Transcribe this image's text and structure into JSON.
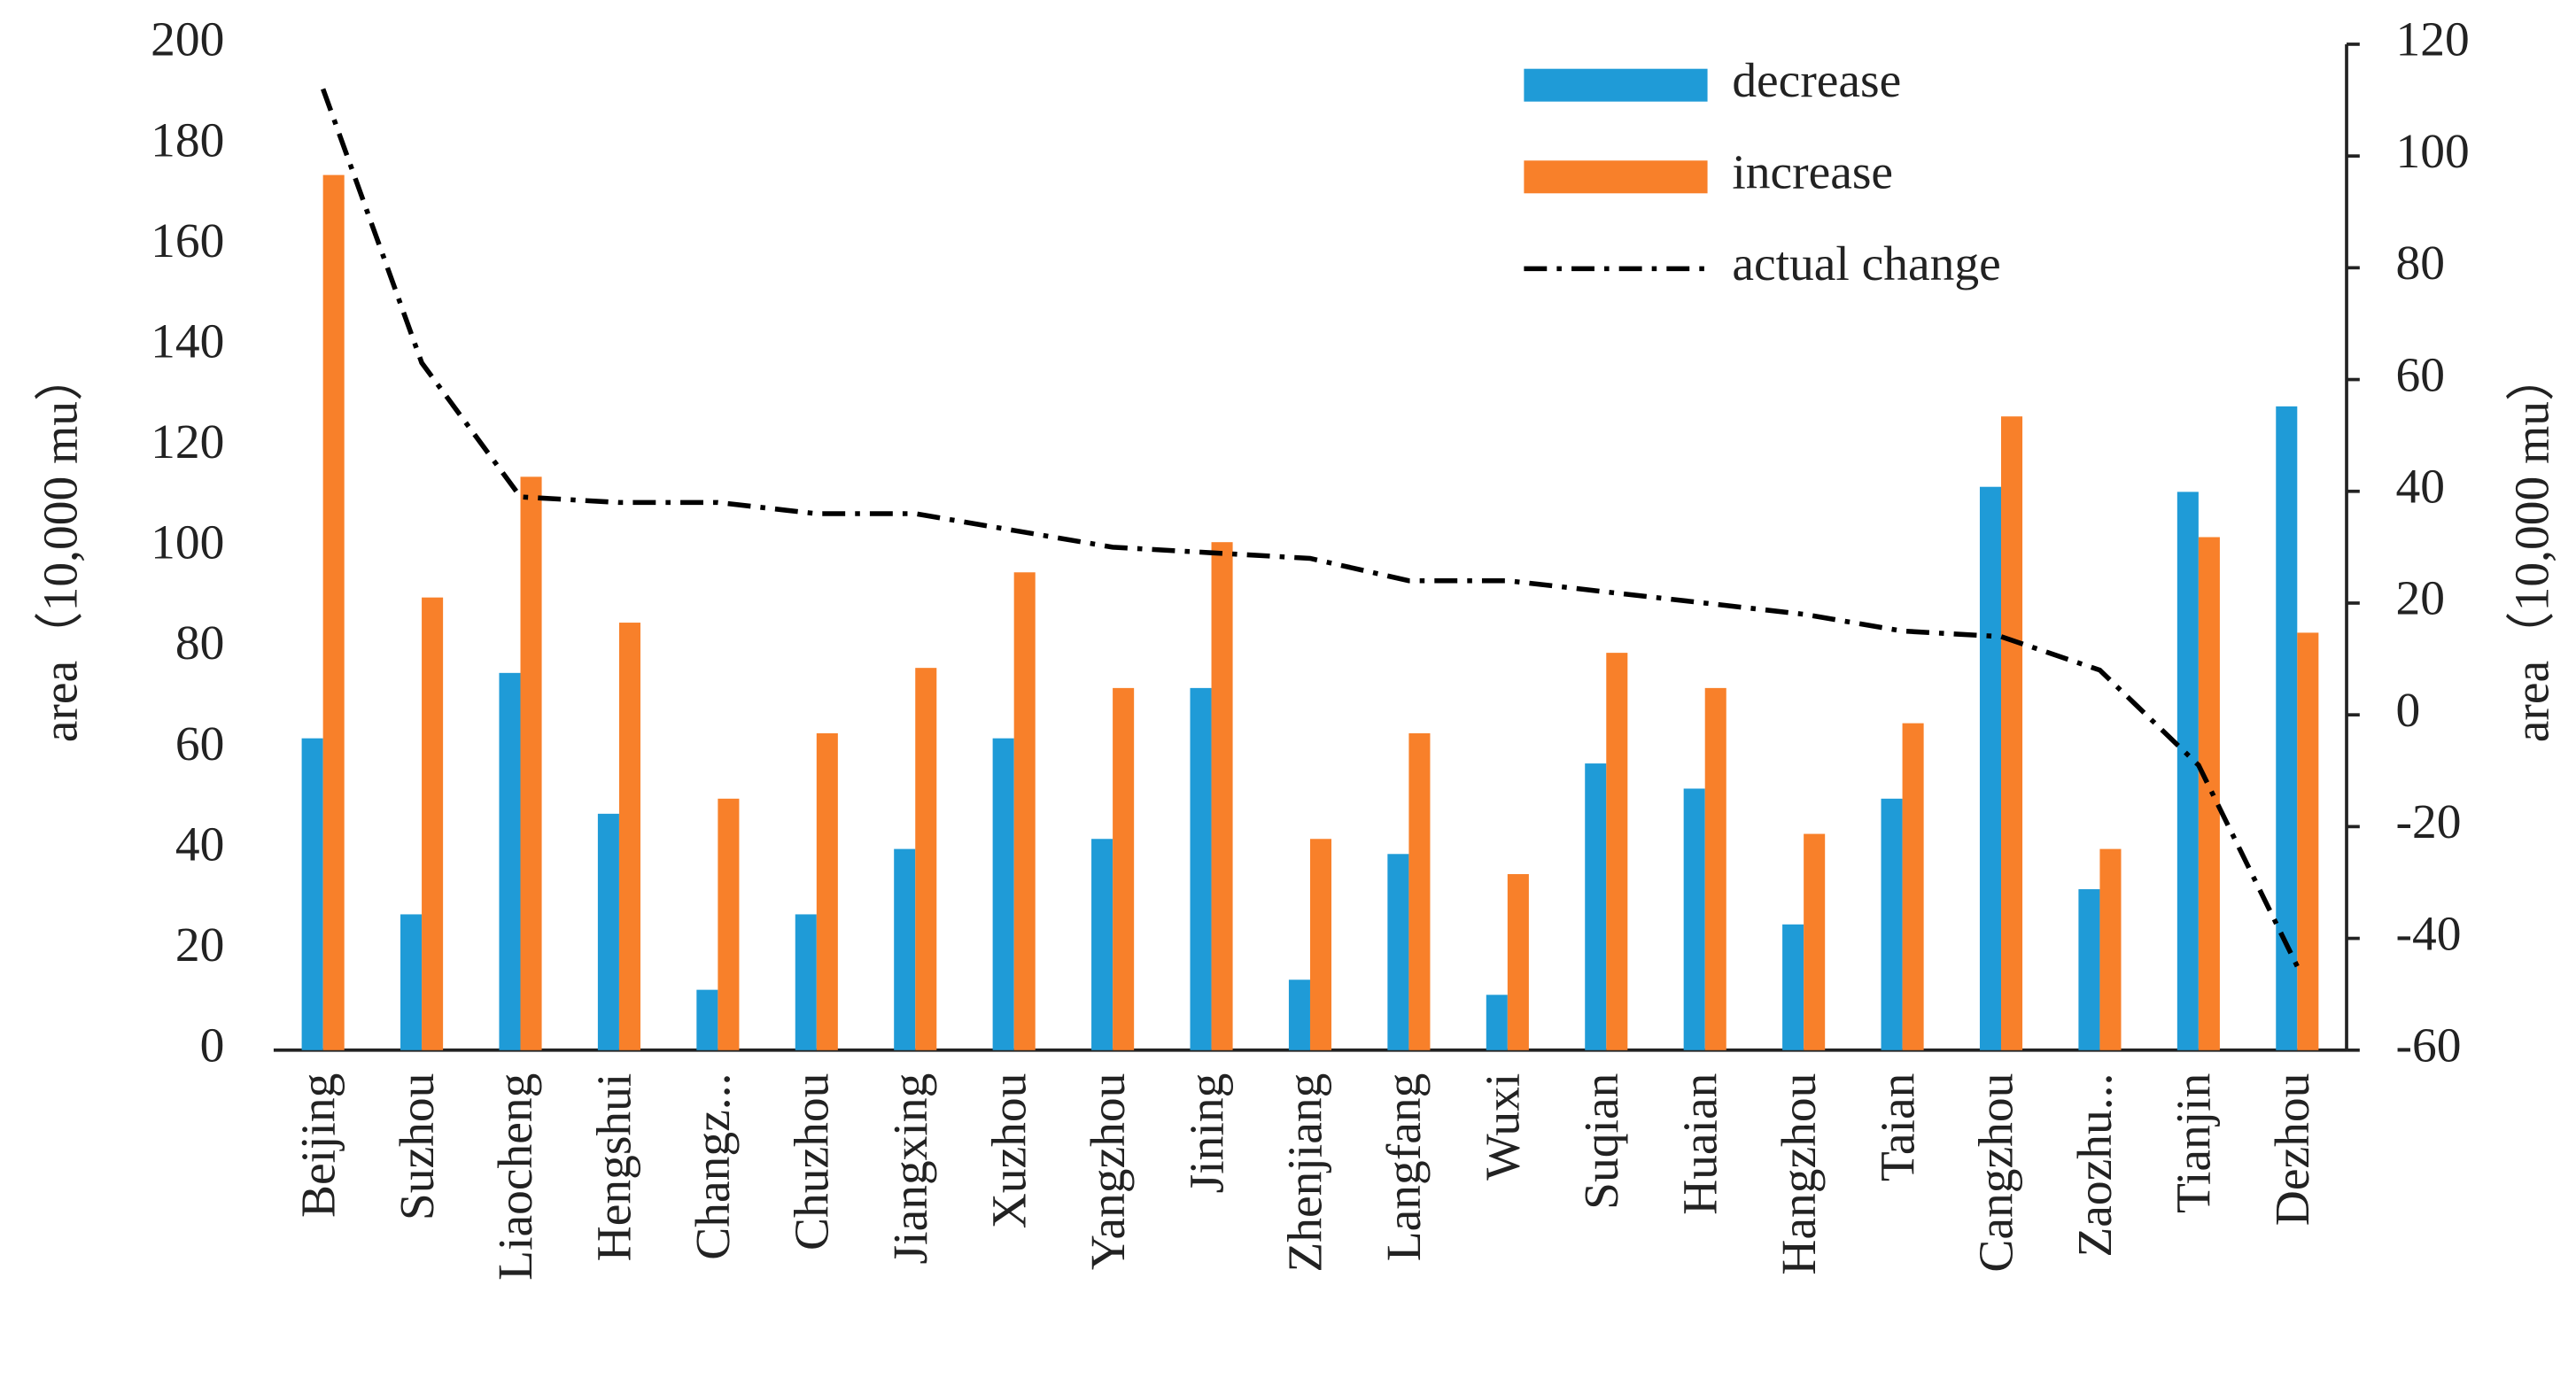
{
  "chart_data": {
    "type": "bar",
    "categories": [
      "Beijing",
      "Suzhou",
      "Liaocheng",
      "Hengshui",
      "Changz...",
      "Chuzhou",
      "Jiangxing",
      "Xuzhou",
      "Yangzhou",
      "Jining",
      "Zhenjiang",
      "Langfang",
      "Wuxi",
      "Suqian",
      "Huaian",
      "Hangzhou",
      "Taian",
      "Cangzhou",
      "Zaozhu...",
      "Tianjin",
      "Dezhou"
    ],
    "series": [
      {
        "name": "decrease",
        "color": "#1f9bd7",
        "values": [
          62,
          27,
          75,
          47,
          12,
          27,
          40,
          62,
          42,
          72,
          14,
          39,
          11,
          57,
          52,
          25,
          50,
          112,
          32,
          111,
          128
        ]
      },
      {
        "name": "increase",
        "color": "#f8802a",
        "values": [
          174,
          90,
          114,
          85,
          50,
          63,
          76,
          95,
          72,
          101,
          42,
          63,
          35,
          79,
          72,
          43,
          65,
          126,
          40,
          102,
          83
        ]
      },
      {
        "name": "actual change",
        "color": "#000000",
        "type": "line",
        "axis": "y2",
        "values": [
          112,
          63,
          39,
          38,
          38,
          36,
          36,
          33,
          30,
          29,
          28,
          24,
          24,
          22,
          20,
          18,
          15,
          14,
          8,
          -9,
          -45
        ]
      }
    ],
    "ylabel": "area（10,000 mu）",
    "y2label": "area（10,000 mu）",
    "ylim": [
      0,
      200
    ],
    "yticks": [
      0,
      20,
      40,
      60,
      80,
      100,
      120,
      140,
      160,
      180,
      200
    ],
    "y2lim": [
      -60,
      120
    ],
    "y2ticks": [
      -60,
      -40,
      -20,
      0,
      20,
      40,
      60,
      80,
      100,
      120
    ],
    "legend": "top-right"
  }
}
